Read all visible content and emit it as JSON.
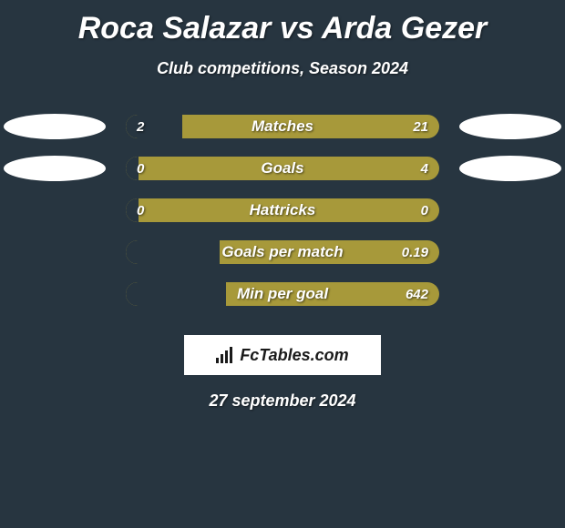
{
  "title": "Roca Salazar vs Arda Gezer",
  "subtitle": "Club competitions, Season 2024",
  "date": "27 september 2024",
  "logo_text": "FcTables.com",
  "colors": {
    "background": "#273540",
    "track": "#a7993a",
    "bar_left": "#273540",
    "bar_right": "#273540",
    "ellipse_left": "#ffffff",
    "ellipse_right": "#ffffff",
    "text": "#ffffff"
  },
  "rows": [
    {
      "label": "Matches",
      "left_value": "2",
      "right_value": "21",
      "left_pct": 18,
      "right_pct": 0,
      "show_ellipses": true,
      "ellipse_left_color": "#ffffff",
      "ellipse_right_color": "#ffffff"
    },
    {
      "label": "Goals",
      "left_value": "0",
      "right_value": "4",
      "left_pct": 4,
      "right_pct": 0,
      "show_ellipses": true,
      "ellipse_left_color": "#ffffff",
      "ellipse_right_color": "#ffffff"
    },
    {
      "label": "Hattricks",
      "left_value": "0",
      "right_value": "0",
      "left_pct": 4,
      "right_pct": 0,
      "show_ellipses": false
    },
    {
      "label": "Goals per match",
      "left_value": "",
      "right_value": "0.19",
      "left_pct": 30,
      "right_pct": 0,
      "show_ellipses": false
    },
    {
      "label": "Min per goal",
      "left_value": "",
      "right_value": "642",
      "left_pct": 32,
      "right_pct": 0,
      "show_ellipses": false
    }
  ]
}
